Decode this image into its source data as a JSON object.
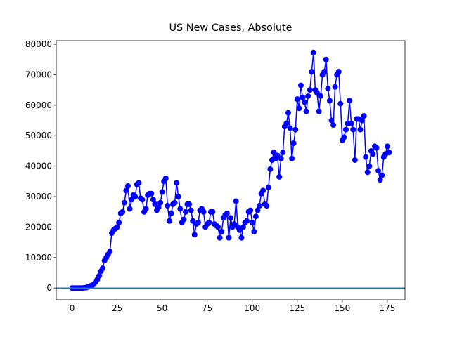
{
  "chart_data": {
    "type": "line",
    "title": "US New Cases, Absolute",
    "x": [
      0,
      1,
      2,
      3,
      4,
      5,
      6,
      7,
      8,
      9,
      10,
      11,
      12,
      13,
      14,
      15,
      16,
      17,
      18,
      19,
      20,
      21,
      22,
      23,
      24,
      25,
      26,
      27,
      28,
      29,
      30,
      31,
      32,
      33,
      34,
      35,
      36,
      37,
      38,
      39,
      40,
      41,
      42,
      43,
      44,
      45,
      46,
      47,
      48,
      49,
      50,
      51,
      52,
      53,
      54,
      55,
      56,
      57,
      58,
      59,
      60,
      61,
      62,
      63,
      64,
      65,
      66,
      67,
      68,
      69,
      70,
      71,
      72,
      73,
      74,
      75,
      76,
      77,
      78,
      79,
      80,
      81,
      82,
      83,
      84,
      85,
      86,
      87,
      88,
      89,
      90,
      91,
      92,
      93,
      94,
      95,
      96,
      97,
      98,
      99,
      100,
      101,
      102,
      103,
      104,
      105,
      106,
      107,
      108,
      109,
      110,
      111,
      112,
      113,
      114,
      115,
      116,
      117,
      118,
      119,
      120,
      121,
      122,
      123,
      124,
      125,
      126,
      127,
      128,
      129,
      130,
      131,
      132,
      133,
      134,
      135,
      136,
      137,
      138,
      139,
      140,
      141,
      142,
      143,
      144,
      145,
      146,
      147,
      148,
      149,
      150,
      151,
      152,
      153,
      154,
      155,
      156,
      157,
      158,
      159,
      160,
      161,
      162,
      163,
      164,
      165,
      166,
      167,
      168,
      169,
      170,
      171,
      172,
      173,
      174,
      175,
      176
    ],
    "series": [
      {
        "color": "#0000ff",
        "values": [
          1,
          0,
          2,
          0,
          3,
          0,
          1,
          100,
          200,
          400,
          700,
          900,
          1200,
          2000,
          2800,
          4000,
          5500,
          6500,
          9000,
          10000,
          11000,
          12000,
          18000,
          19000,
          19500,
          20000,
          21500,
          24500,
          25000,
          28000,
          32000,
          33500,
          26000,
          29000,
          30500,
          30000,
          34000,
          34500,
          29500,
          29000,
          25000,
          26000,
          30500,
          31000,
          31000,
          29000,
          27500,
          25500,
          26500,
          28000,
          31500,
          35000,
          36000,
          27000,
          22000,
          24500,
          27500,
          28000,
          34500,
          30000,
          26000,
          21500,
          22500,
          25000,
          27500,
          27500,
          25500,
          22000,
          17500,
          21000,
          21500,
          25500,
          26000,
          25000,
          20000,
          21000,
          21500,
          25000,
          25000,
          21000,
          20500,
          20000,
          16500,
          18500,
          23000,
          24000,
          24500,
          16500,
          23000,
          20000,
          21000,
          28500,
          20000,
          19000,
          16500,
          20000,
          21500,
          22000,
          25000,
          25500,
          21500,
          18500,
          23500,
          25500,
          27000,
          31000,
          32000,
          27500,
          27000,
          33000,
          39000,
          42000,
          44500,
          42500,
          43500,
          36500,
          42500,
          44500,
          53000,
          54000,
          57500,
          52500,
          42500,
          47500,
          52000,
          62000,
          59000,
          66500,
          62500,
          61000,
          58000,
          63000,
          65000,
          71000,
          77300,
          65000,
          64000,
          58000,
          63000,
          70000,
          71000,
          75000,
          65500,
          61500,
          55000,
          53500,
          66000,
          70000,
          71000,
          60500,
          48500,
          49500,
          52000,
          54000,
          61500,
          54000,
          52000,
          42000,
          55500,
          55500,
          52000,
          55000,
          56500,
          43000,
          38000,
          40000,
          45000,
          44000,
          46500,
          46000,
          38500,
          35500,
          37000,
          43000,
          44000,
          46500,
          44500
        ]
      }
    ],
    "hline": 0,
    "hline_color": "#1f77b4",
    "xlim": [
      -8.8,
      184.8
    ],
    "xticks": [
      0,
      25,
      50,
      75,
      100,
      125,
      150,
      175
    ],
    "ylim": [
      -3865,
      81165
    ],
    "yticks": [
      0,
      10000,
      20000,
      30000,
      40000,
      50000,
      60000,
      70000,
      80000
    ]
  }
}
